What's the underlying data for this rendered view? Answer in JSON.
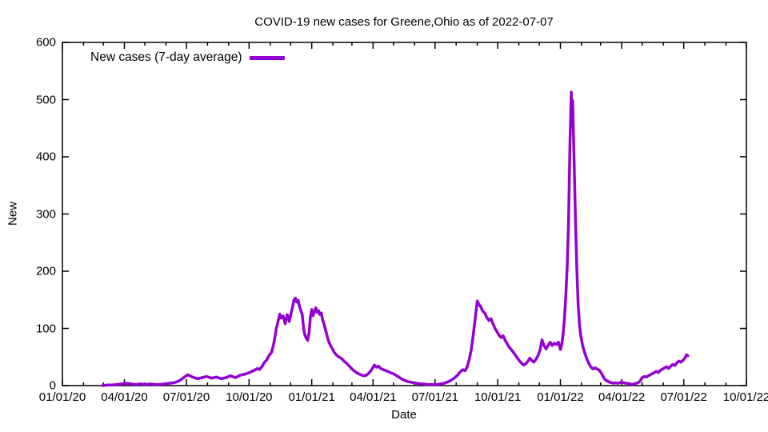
{
  "title": "COVID-19 new cases for Greene,Ohio as of 2022-07-07",
  "colors": {
    "line": "#9400D3",
    "axis": "#000000",
    "text": "#000000",
    "background": "#FFFFFF"
  },
  "chart_data": {
    "type": "line",
    "title": "COVID-19 new cases for Greene,Ohio as of 2022-07-07",
    "xlabel": "Date",
    "ylabel": "New",
    "grid": false,
    "legend_position": "top-left-inside",
    "legend": [
      {
        "label": "New cases (7-day average)",
        "color": "#9400D3"
      }
    ],
    "xlim": [
      "2020-01-01",
      "2022-10-01"
    ],
    "ylim": [
      0,
      600
    ],
    "y_ticks": [
      0,
      100,
      200,
      300,
      400,
      500,
      600
    ],
    "x_ticks": [
      {
        "label": "01/01/20",
        "date": "2020-01-01"
      },
      {
        "label": "04/01/20",
        "date": "2020-04-01"
      },
      {
        "label": "07/01/20",
        "date": "2020-07-01"
      },
      {
        "label": "10/01/20",
        "date": "2020-10-01"
      },
      {
        "label": "01/01/21",
        "date": "2021-01-01"
      },
      {
        "label": "04/01/21",
        "date": "2021-04-01"
      },
      {
        "label": "07/01/21",
        "date": "2021-07-01"
      },
      {
        "label": "10/01/21",
        "date": "2021-10-01"
      },
      {
        "label": "01/01/22",
        "date": "2022-01-01"
      },
      {
        "label": "04/01/22",
        "date": "2022-04-01"
      },
      {
        "label": "07/01/22",
        "date": "2022-07-01"
      },
      {
        "label": "10/01/22",
        "date": "2022-10-01"
      }
    ],
    "minor_x_tick_interval": "month",
    "series": [
      {
        "name": "New cases (7-day average)",
        "color": "#9400D3",
        "points": [
          [
            "2020-02-29",
            0
          ],
          [
            "2020-03-07",
            1
          ],
          [
            "2020-03-14",
            1
          ],
          [
            "2020-03-21",
            2
          ],
          [
            "2020-03-28",
            3
          ],
          [
            "2020-04-04",
            4
          ],
          [
            "2020-04-11",
            3
          ],
          [
            "2020-04-18",
            2
          ],
          [
            "2020-04-25",
            3
          ],
          [
            "2020-05-02",
            2
          ],
          [
            "2020-05-09",
            3
          ],
          [
            "2020-05-16",
            2
          ],
          [
            "2020-05-23",
            2
          ],
          [
            "2020-05-30",
            3
          ],
          [
            "2020-06-06",
            4
          ],
          [
            "2020-06-13",
            5
          ],
          [
            "2020-06-20",
            8
          ],
          [
            "2020-06-27",
            14
          ],
          [
            "2020-07-03",
            19
          ],
          [
            "2020-07-10",
            15
          ],
          [
            "2020-07-17",
            12
          ],
          [
            "2020-07-24",
            14
          ],
          [
            "2020-07-31",
            16
          ],
          [
            "2020-08-07",
            13
          ],
          [
            "2020-08-14",
            15
          ],
          [
            "2020-08-21",
            12
          ],
          [
            "2020-08-28",
            14
          ],
          [
            "2020-09-04",
            17
          ],
          [
            "2020-09-11",
            14
          ],
          [
            "2020-09-18",
            18
          ],
          [
            "2020-09-25",
            20
          ],
          [
            "2020-10-02",
            23
          ],
          [
            "2020-10-09",
            27
          ],
          [
            "2020-10-13",
            30
          ],
          [
            "2020-10-16",
            28
          ],
          [
            "2020-10-20",
            33
          ],
          [
            "2020-10-23",
            40
          ],
          [
            "2020-10-27",
            45
          ],
          [
            "2020-10-30",
            52
          ],
          [
            "2020-11-03",
            58
          ],
          [
            "2020-11-06",
            72
          ],
          [
            "2020-11-08",
            85
          ],
          [
            "2020-11-10",
            100
          ],
          [
            "2020-11-13",
            115
          ],
          [
            "2020-11-15",
            125
          ],
          [
            "2020-11-17",
            118
          ],
          [
            "2020-11-20",
            122
          ],
          [
            "2020-11-23",
            108
          ],
          [
            "2020-11-26",
            124
          ],
          [
            "2020-11-29",
            112
          ],
          [
            "2020-12-02",
            128
          ],
          [
            "2020-12-04",
            138
          ],
          [
            "2020-12-06",
            150
          ],
          [
            "2020-12-08",
            153
          ],
          [
            "2020-12-10",
            146
          ],
          [
            "2020-12-12",
            149
          ],
          [
            "2020-12-14",
            138
          ],
          [
            "2020-12-16",
            131
          ],
          [
            "2020-12-18",
            124
          ],
          [
            "2020-12-20",
            100
          ],
          [
            "2020-12-22",
            88
          ],
          [
            "2020-12-24",
            83
          ],
          [
            "2020-12-26",
            79
          ],
          [
            "2020-12-28",
            92
          ],
          [
            "2020-12-30",
            120
          ],
          [
            "2021-01-01",
            133
          ],
          [
            "2021-01-03",
            122
          ],
          [
            "2021-01-05",
            130
          ],
          [
            "2021-01-07",
            136
          ],
          [
            "2021-01-09",
            128
          ],
          [
            "2021-01-11",
            131
          ],
          [
            "2021-01-13",
            124
          ],
          [
            "2021-01-15",
            127
          ],
          [
            "2021-01-17",
            115
          ],
          [
            "2021-01-19",
            108
          ],
          [
            "2021-01-21",
            98
          ],
          [
            "2021-01-23",
            90
          ],
          [
            "2021-01-25",
            80
          ],
          [
            "2021-01-28",
            71
          ],
          [
            "2021-01-31",
            65
          ],
          [
            "2021-02-03",
            58
          ],
          [
            "2021-02-06",
            54
          ],
          [
            "2021-02-10",
            50
          ],
          [
            "2021-02-14",
            47
          ],
          [
            "2021-02-18",
            42
          ],
          [
            "2021-02-22",
            38
          ],
          [
            "2021-02-26",
            33
          ],
          [
            "2021-03-02",
            28
          ],
          [
            "2021-03-06",
            24
          ],
          [
            "2021-03-10",
            21
          ],
          [
            "2021-03-14",
            19
          ],
          [
            "2021-03-18",
            17
          ],
          [
            "2021-03-22",
            18
          ],
          [
            "2021-03-26",
            22
          ],
          [
            "2021-03-30",
            28
          ],
          [
            "2021-04-03",
            36
          ],
          [
            "2021-04-06",
            32
          ],
          [
            "2021-04-09",
            34
          ],
          [
            "2021-04-12",
            30
          ],
          [
            "2021-04-16",
            28
          ],
          [
            "2021-04-20",
            26
          ],
          [
            "2021-04-24",
            24
          ],
          [
            "2021-04-28",
            22
          ],
          [
            "2021-05-02",
            20
          ],
          [
            "2021-05-06",
            17
          ],
          [
            "2021-05-10",
            14
          ],
          [
            "2021-05-14",
            11
          ],
          [
            "2021-05-18",
            9
          ],
          [
            "2021-05-22",
            7
          ],
          [
            "2021-05-26",
            6
          ],
          [
            "2021-05-30",
            5
          ],
          [
            "2021-06-04",
            4
          ],
          [
            "2021-06-09",
            3
          ],
          [
            "2021-06-14",
            3
          ],
          [
            "2021-06-19",
            2
          ],
          [
            "2021-06-24",
            2
          ],
          [
            "2021-06-29",
            2
          ],
          [
            "2021-07-04",
            2
          ],
          [
            "2021-07-09",
            3
          ],
          [
            "2021-07-14",
            4
          ],
          [
            "2021-07-19",
            6
          ],
          [
            "2021-07-24",
            9
          ],
          [
            "2021-07-29",
            13
          ],
          [
            "2021-08-03",
            18
          ],
          [
            "2021-08-07",
            24
          ],
          [
            "2021-08-11",
            28
          ],
          [
            "2021-08-14",
            26
          ],
          [
            "2021-08-17",
            32
          ],
          [
            "2021-08-20",
            45
          ],
          [
            "2021-08-23",
            62
          ],
          [
            "2021-08-26",
            88
          ],
          [
            "2021-08-29",
            118
          ],
          [
            "2021-09-01",
            148
          ],
          [
            "2021-09-03",
            143
          ],
          [
            "2021-09-06",
            138
          ],
          [
            "2021-09-09",
            130
          ],
          [
            "2021-09-12",
            127
          ],
          [
            "2021-09-15",
            119
          ],
          [
            "2021-09-18",
            114
          ],
          [
            "2021-09-21",
            117
          ],
          [
            "2021-09-24",
            108
          ],
          [
            "2021-09-27",
            100
          ],
          [
            "2021-09-30",
            94
          ],
          [
            "2021-10-03",
            88
          ],
          [
            "2021-10-06",
            84
          ],
          [
            "2021-10-09",
            87
          ],
          [
            "2021-10-12",
            79
          ],
          [
            "2021-10-15",
            73
          ],
          [
            "2021-10-18",
            67
          ],
          [
            "2021-10-21",
            63
          ],
          [
            "2021-10-24",
            58
          ],
          [
            "2021-10-27",
            53
          ],
          [
            "2021-10-30",
            48
          ],
          [
            "2021-11-02",
            43
          ],
          [
            "2021-11-05",
            39
          ],
          [
            "2021-11-08",
            36
          ],
          [
            "2021-11-11",
            38
          ],
          [
            "2021-11-14",
            42
          ],
          [
            "2021-11-17",
            48
          ],
          [
            "2021-11-20",
            44
          ],
          [
            "2021-11-23",
            41
          ],
          [
            "2021-11-26",
            46
          ],
          [
            "2021-11-29",
            52
          ],
          [
            "2021-12-02",
            62
          ],
          [
            "2021-12-05",
            80
          ],
          [
            "2021-12-08",
            70
          ],
          [
            "2021-12-11",
            64
          ],
          [
            "2021-12-14",
            70
          ],
          [
            "2021-12-17",
            76
          ],
          [
            "2021-12-20",
            70
          ],
          [
            "2021-12-23",
            74
          ],
          [
            "2021-12-26",
            72
          ],
          [
            "2021-12-29",
            76
          ],
          [
            "2022-01-01",
            63
          ],
          [
            "2022-01-03",
            72
          ],
          [
            "2022-01-05",
            90
          ],
          [
            "2022-01-07",
            118
          ],
          [
            "2022-01-09",
            158
          ],
          [
            "2022-01-11",
            208
          ],
          [
            "2022-01-13",
            288
          ],
          [
            "2022-01-15",
            420
          ],
          [
            "2022-01-17",
            513
          ],
          [
            "2022-01-18",
            455
          ],
          [
            "2022-01-19",
            498
          ],
          [
            "2022-01-21",
            400
          ],
          [
            "2022-01-23",
            292
          ],
          [
            "2022-01-25",
            205
          ],
          [
            "2022-01-27",
            142
          ],
          [
            "2022-01-29",
            106
          ],
          [
            "2022-01-31",
            86
          ],
          [
            "2022-02-03",
            68
          ],
          [
            "2022-02-06",
            56
          ],
          [
            "2022-02-09",
            46
          ],
          [
            "2022-02-12",
            38
          ],
          [
            "2022-02-15",
            32
          ],
          [
            "2022-02-18",
            29
          ],
          [
            "2022-02-21",
            31
          ],
          [
            "2022-02-24",
            29
          ],
          [
            "2022-02-27",
            27
          ],
          [
            "2022-03-02",
            22
          ],
          [
            "2022-03-05",
            15
          ],
          [
            "2022-03-08",
            10
          ],
          [
            "2022-03-11",
            8
          ],
          [
            "2022-03-14",
            6
          ],
          [
            "2022-03-17",
            5
          ],
          [
            "2022-03-20",
            4
          ],
          [
            "2022-03-23",
            5
          ],
          [
            "2022-03-26",
            4
          ],
          [
            "2022-03-29",
            5
          ],
          [
            "2022-04-01",
            6
          ],
          [
            "2022-04-04",
            5
          ],
          [
            "2022-04-07",
            4
          ],
          [
            "2022-04-10",
            4
          ],
          [
            "2022-04-13",
            3
          ],
          [
            "2022-04-16",
            2
          ],
          [
            "2022-04-19",
            3
          ],
          [
            "2022-04-22",
            4
          ],
          [
            "2022-04-25",
            5
          ],
          [
            "2022-04-28",
            8
          ],
          [
            "2022-05-01",
            14
          ],
          [
            "2022-05-04",
            16
          ],
          [
            "2022-05-07",
            15
          ],
          [
            "2022-05-10",
            17
          ],
          [
            "2022-05-13",
            19
          ],
          [
            "2022-05-16",
            21
          ],
          [
            "2022-05-19",
            23
          ],
          [
            "2022-05-22",
            25
          ],
          [
            "2022-05-25",
            23
          ],
          [
            "2022-05-28",
            27
          ],
          [
            "2022-05-31",
            29
          ],
          [
            "2022-06-03",
            31
          ],
          [
            "2022-06-06",
            33
          ],
          [
            "2022-06-09",
            30
          ],
          [
            "2022-06-12",
            34
          ],
          [
            "2022-06-15",
            37
          ],
          [
            "2022-06-18",
            35
          ],
          [
            "2022-06-21",
            40
          ],
          [
            "2022-06-24",
            43
          ],
          [
            "2022-06-27",
            41
          ],
          [
            "2022-06-30",
            44
          ],
          [
            "2022-07-03",
            49
          ],
          [
            "2022-07-05",
            54
          ],
          [
            "2022-07-07",
            52
          ]
        ]
      }
    ]
  }
}
